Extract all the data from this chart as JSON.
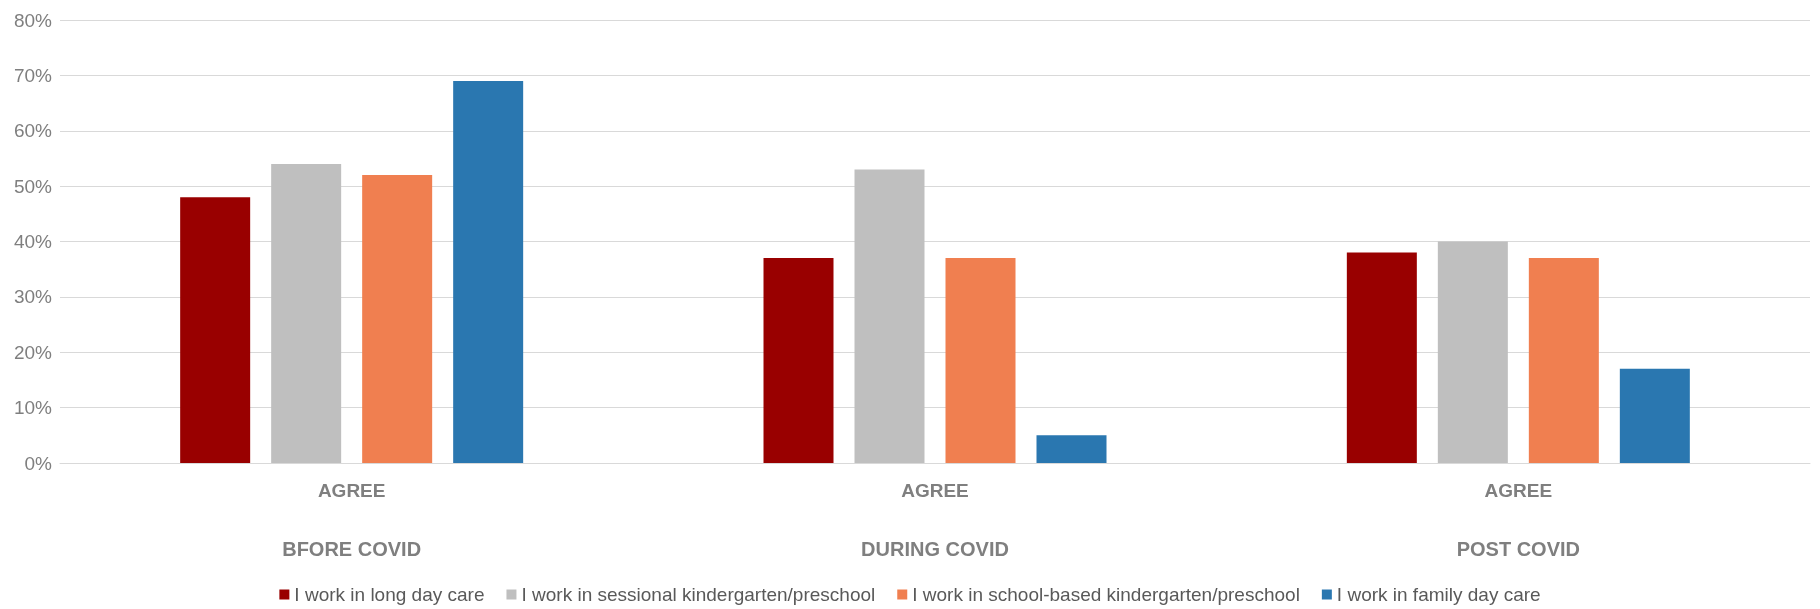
{
  "chart_data": {
    "type": "bar",
    "categories": [
      "AGREE",
      "AGREE",
      "AGREE"
    ],
    "annotations": [
      "BFORE COVID",
      "DURING COVID",
      "POST COVID"
    ],
    "series": [
      {
        "name": "I work in long day care",
        "color": "#990000",
        "values": [
          48,
          37,
          38
        ]
      },
      {
        "name": "I work in sessional kindergarten/preschool",
        "color": "#bfbfbf",
        "values": [
          54,
          53,
          40
        ]
      },
      {
        "name": "I work in school-based kindergarten/preschool",
        "color": "#f07f50",
        "values": [
          52,
          37,
          37
        ]
      },
      {
        "name": "I work in family day care",
        "color": "#2a77b0",
        "values": [
          69,
          5,
          17
        ]
      }
    ],
    "ylim": [
      0,
      80
    ],
    "yticks": [
      {
        "value": 0,
        "label": "0%"
      },
      {
        "value": 10,
        "label": "10%"
      },
      {
        "value": 20,
        "label": "20%"
      },
      {
        "value": 30,
        "label": "30%"
      },
      {
        "value": 40,
        "label": "40%"
      },
      {
        "value": 50,
        "label": "50%"
      },
      {
        "value": 60,
        "label": "60%"
      },
      {
        "value": 70,
        "label": "70%"
      },
      {
        "value": 80,
        "label": "80%"
      }
    ],
    "grid": "y",
    "legend": "bottom"
  }
}
